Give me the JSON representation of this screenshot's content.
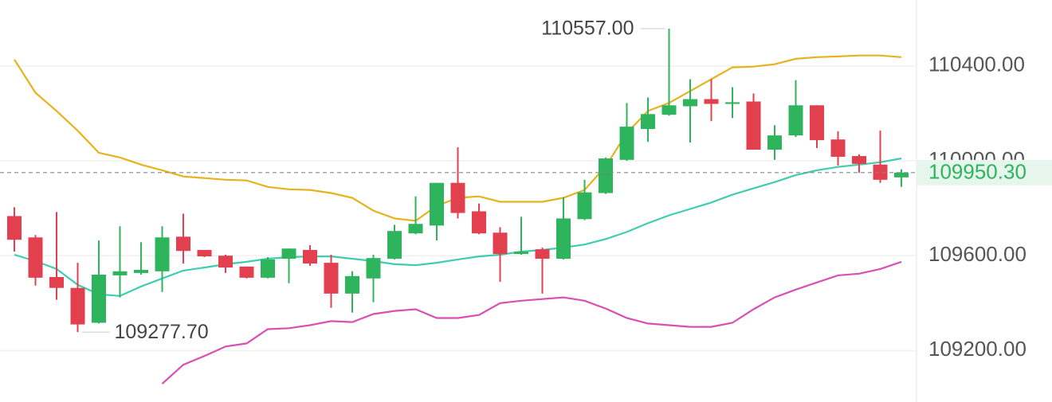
{
  "chart_data": {
    "type": "candlestick",
    "ylim": [
      108983,
      110678
    ],
    "yticks": [
      {
        "value": 109200,
        "label": "109200.00"
      },
      {
        "value": 109600,
        "label": "109600.00"
      },
      {
        "value": 110000,
        "label": "110000.00"
      },
      {
        "value": 110400,
        "label": "110400.00"
      }
    ],
    "grid": true,
    "colors": {
      "up": "#2fb45e",
      "down": "#e3404f"
    },
    "open": [
      109767,
      109677,
      109510,
      109464,
      109317,
      109517,
      109527,
      109534,
      109680,
      109624,
      109600,
      109554,
      109507,
      109587,
      109624,
      109570,
      109440,
      109504,
      109587,
      109694,
      109727,
      109907,
      109787,
      109697,
      109607,
      109627,
      109587,
      109754,
      109864,
      110004,
      110134,
      110194,
      110230,
      110260,
      110240,
      110250,
      110047,
      110107,
      110234,
      110090,
      110020,
      109984,
      109930
    ],
    "high": [
      109804,
      109687,
      109784,
      109570,
      109664,
      109724,
      109657,
      109724,
      109777,
      109624,
      109604,
      109554,
      109594,
      109630,
      109644,
      109604,
      109534,
      109604,
      109730,
      109850,
      109907,
      110057,
      109820,
      109720,
      109764,
      109634,
      109847,
      109920,
      110014,
      110244,
      110267,
      110557,
      110344,
      110344,
      110310,
      110284,
      110150,
      110340,
      110234,
      110124,
      110027,
      110127,
      109964
    ],
    "low": [
      109617,
      109474,
      109414,
      109277.7,
      109314,
      109424,
      109520,
      109447,
      109567,
      109594,
      109527,
      109504,
      109504,
      109484,
      109557,
      109380,
      109360,
      109404,
      109584,
      109690,
      109664,
      109757,
      109690,
      109490,
      109604,
      109440,
      109584,
      109750,
      109860,
      110000,
      110080,
      110190,
      110077,
      110167,
      110180,
      110047,
      110004,
      110100,
      110054,
      109980,
      109950,
      109907,
      109890
    ],
    "close": [
      109667,
      109507,
      109464,
      109310,
      109520,
      109534,
      109540,
      109677,
      109620,
      109597,
      109550,
      109507,
      109584,
      109630,
      109567,
      109440,
      109514,
      109590,
      109704,
      109734,
      109907,
      109780,
      109694,
      109607,
      109617,
      109587,
      109757,
      109867,
      110010,
      110144,
      110197,
      110234,
      110260,
      110240,
      110247,
      110047,
      110107,
      110234,
      110087,
      110017,
      109987,
      109920,
      109950.3
    ],
    "bands": [
      {
        "color": "#e8b21c",
        "values": [
          110427,
          110287,
          110210,
          110127,
          110034,
          110014,
          109984,
          109960,
          109934,
          109927,
          109920,
          109917,
          109890,
          109880,
          109877,
          109864,
          109844,
          109790,
          109757,
          109747,
          109810,
          109844,
          109850,
          109827,
          109827,
          109827,
          109844,
          109877,
          109977,
          110117,
          110210,
          110244,
          110294,
          110344,
          110394,
          110397,
          110407,
          110430,
          110437,
          110440,
          110444,
          110444,
          110437
        ]
      },
      {
        "color": "#3ecdb0",
        "values": [
          109604,
          109577,
          109544,
          109477,
          109437,
          109430,
          109470,
          109504,
          109537,
          109550,
          109564,
          109574,
          109587,
          109594,
          109597,
          109597,
          109587,
          109577,
          109564,
          109560,
          109570,
          109584,
          109597,
          109604,
          109617,
          109624,
          109634,
          109647,
          109670,
          109700,
          109737,
          109770,
          109797,
          109824,
          109857,
          109884,
          109910,
          109940,
          109960,
          109974,
          109984,
          109994,
          110010
        ]
      },
      {
        "color": "#d94fb2",
        "values": [
          null,
          null,
          null,
          null,
          null,
          null,
          null,
          109060,
          109140,
          109177,
          109217,
          109230,
          109290,
          109294,
          109307,
          109324,
          109320,
          109354,
          109367,
          109374,
          109337,
          109337,
          109350,
          109400,
          109410,
          109417,
          109424,
          109410,
          109377,
          109337,
          109314,
          109307,
          109300,
          109300,
          109317,
          109374,
          109424,
          109457,
          109487,
          109517,
          109524,
          109544,
          109574
        ]
      }
    ],
    "high_label": "110557.00",
    "low_label": "109277.70",
    "last_price": 109950.3,
    "last_price_label": "109950.30",
    "last_price_color": "#2fb45e"
  }
}
